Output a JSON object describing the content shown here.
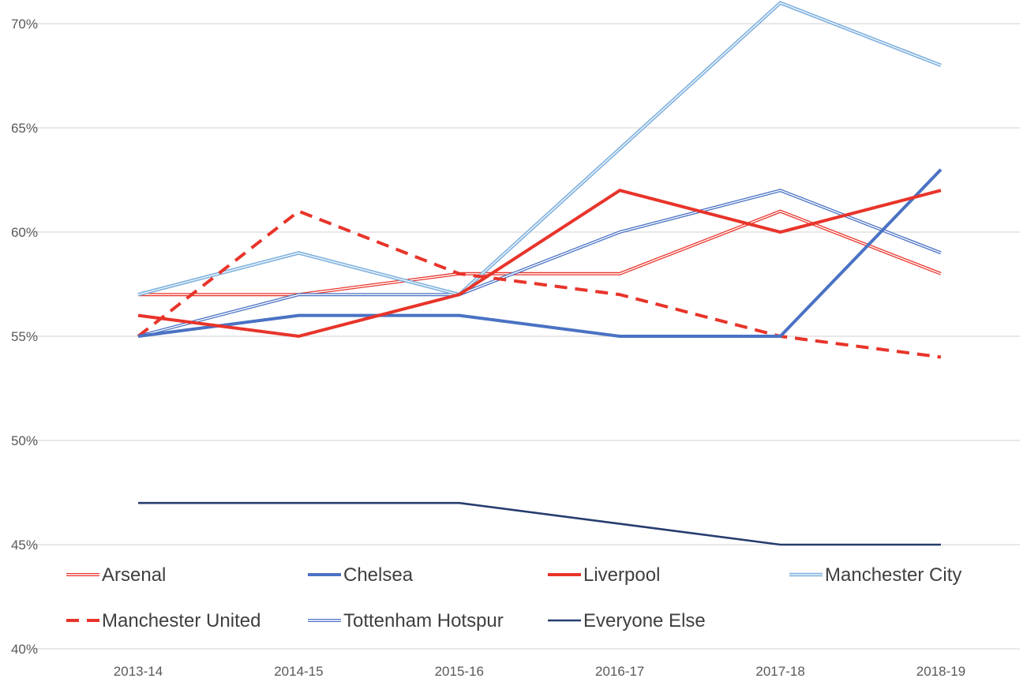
{
  "chart_data": {
    "type": "line",
    "title": "",
    "xlabel": "",
    "ylabel": "",
    "categories": [
      "2013-14",
      "2014-15",
      "2015-16",
      "2016-17",
      "2017-18",
      "2018-19"
    ],
    "ylim": [
      40,
      70
    ],
    "yticks": [
      40,
      45,
      50,
      55,
      60,
      65,
      70
    ],
    "ytick_labels": [
      "40%",
      "45%",
      "50%",
      "55%",
      "60%",
      "65%",
      "70%"
    ],
    "grid": true,
    "legend_position": "bottom-inside",
    "series": [
      {
        "name": "Arsenal",
        "values": [
          57,
          57,
          58,
          58,
          61,
          58
        ],
        "color": "#e8342a",
        "style": "double-thin"
      },
      {
        "name": "Chelsea",
        "values": [
          55,
          56,
          56,
          55,
          55,
          63
        ],
        "color": "#4a72c4",
        "style": "solid-thick"
      },
      {
        "name": "Liverpool",
        "values": [
          56,
          55,
          57,
          62,
          60,
          62
        ],
        "color": "#e8342a",
        "style": "solid-thick"
      },
      {
        "name": "Manchester City",
        "values": [
          57,
          59,
          57,
          64,
          71,
          68
        ],
        "color": "#7fb1de",
        "style": "double-thick"
      },
      {
        "name": "Manchester United",
        "values": [
          55,
          61,
          58,
          57,
          55,
          54
        ],
        "color": "#e8342a",
        "style": "dashed-thick"
      },
      {
        "name": "Tottenham Hotspur",
        "values": [
          55,
          57,
          57,
          60,
          62,
          59
        ],
        "color": "#4a72c4",
        "style": "double-thin"
      },
      {
        "name": "Everyone Else",
        "values": [
          47,
          47,
          47,
          46,
          45,
          45
        ],
        "color": "#263d6e",
        "style": "solid-medium"
      }
    ]
  }
}
